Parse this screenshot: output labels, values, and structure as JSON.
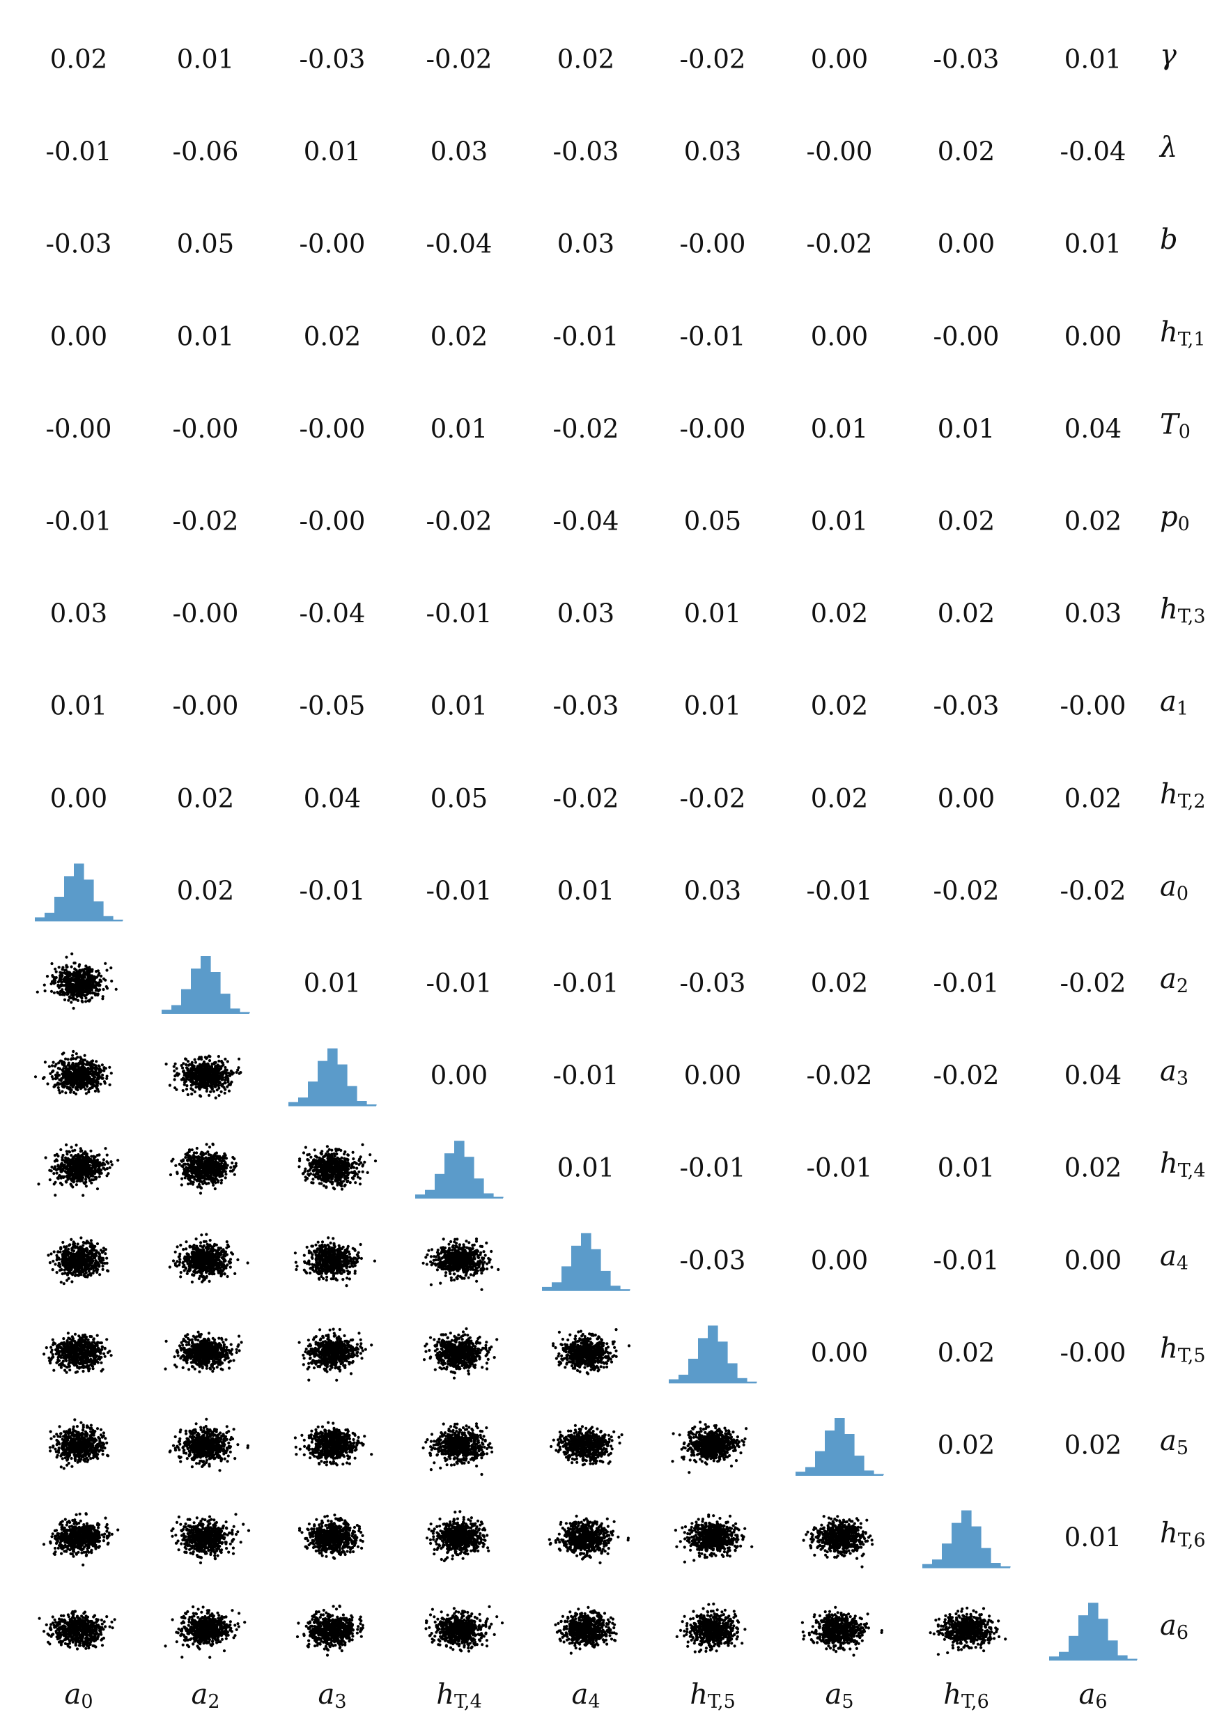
{
  "chart_data": {
    "type": "corner",
    "diagonal": "histogram",
    "lower": "scatter",
    "upper": "correlation-coefficient",
    "row_labels": [
      {
        "base": "γ",
        "sub": ""
      },
      {
        "base": "λ",
        "sub": ""
      },
      {
        "base": "b",
        "sub": ""
      },
      {
        "base": "h",
        "sub": "T,1"
      },
      {
        "base": "T",
        "sub": "0"
      },
      {
        "base": "p",
        "sub": "0"
      },
      {
        "base": "h",
        "sub": "T,3"
      },
      {
        "base": "a",
        "sub": "1"
      },
      {
        "base": "h",
        "sub": "T,2"
      },
      {
        "base": "a",
        "sub": "0"
      },
      {
        "base": "a",
        "sub": "2"
      },
      {
        "base": "a",
        "sub": "3"
      },
      {
        "base": "h",
        "sub": "T,4"
      },
      {
        "base": "a",
        "sub": "4"
      },
      {
        "base": "h",
        "sub": "T,5"
      },
      {
        "base": "a",
        "sub": "5"
      },
      {
        "base": "h",
        "sub": "T,6"
      },
      {
        "base": "a",
        "sub": "6"
      }
    ],
    "col_labels": [
      {
        "base": "a",
        "sub": "0"
      },
      {
        "base": "a",
        "sub": "2"
      },
      {
        "base": "a",
        "sub": "3"
      },
      {
        "base": "h",
        "sub": "T,4"
      },
      {
        "base": "a",
        "sub": "4"
      },
      {
        "base": "h",
        "sub": "T,5"
      },
      {
        "base": "a",
        "sub": "5"
      },
      {
        "base": "h",
        "sub": "T,6"
      },
      {
        "base": "a",
        "sub": "6"
      }
    ],
    "top_rows_correlations": [
      [
        "0.02",
        "0.01",
        "-0.03",
        "-0.02",
        "0.02",
        "-0.02",
        "0.00",
        "-0.03",
        "0.01"
      ],
      [
        "-0.01",
        "-0.06",
        "0.01",
        "0.03",
        "-0.03",
        "0.03",
        "-0.00",
        "0.02",
        "-0.04"
      ],
      [
        "-0.03",
        "0.05",
        "-0.00",
        "-0.04",
        "0.03",
        "-0.00",
        "-0.02",
        "0.00",
        "0.01"
      ],
      [
        "0.00",
        "0.01",
        "0.02",
        "0.02",
        "-0.01",
        "-0.01",
        "0.00",
        "-0.00",
        "0.00"
      ],
      [
        "-0.00",
        "-0.00",
        "-0.00",
        "0.01",
        "-0.02",
        "-0.00",
        "0.01",
        "0.01",
        "0.04"
      ],
      [
        "-0.01",
        "-0.02",
        "-0.00",
        "-0.02",
        "-0.04",
        "0.05",
        "0.01",
        "0.02",
        "0.02"
      ],
      [
        "0.03",
        "-0.00",
        "-0.04",
        "-0.01",
        "0.03",
        "0.01",
        "0.02",
        "0.02",
        "0.03"
      ],
      [
        "0.01",
        "-0.00",
        "-0.05",
        "0.01",
        "-0.03",
        "0.01",
        "0.02",
        "-0.03",
        "-0.00"
      ],
      [
        "0.00",
        "0.02",
        "0.04",
        "0.05",
        "-0.02",
        "-0.02",
        "0.02",
        "0.00",
        "0.02"
      ]
    ],
    "upper_triangle_correlations": [
      [
        "0.02",
        "-0.01",
        "-0.01",
        "0.01",
        "0.03",
        "-0.01",
        "-0.02",
        "-0.02"
      ],
      [
        "0.01",
        "-0.01",
        "-0.01",
        "-0.03",
        "0.02",
        "-0.01",
        "-0.02"
      ],
      [
        "0.00",
        "-0.01",
        "0.00",
        "-0.02",
        "-0.02",
        "0.04"
      ],
      [
        "0.01",
        "-0.01",
        "-0.01",
        "0.01",
        "0.02"
      ],
      [
        "-0.03",
        "0.00",
        "-0.01",
        "0.00"
      ],
      [
        "0.00",
        "0.02",
        "-0.00"
      ],
      [
        "0.02",
        "0.02"
      ],
      [
        "0.01"
      ],
      []
    ],
    "histogram_relative_heights": [
      0.06,
      0.14,
      0.42,
      0.78,
      1.0,
      0.72,
      0.34,
      0.08,
      0.02
    ],
    "scatter_points_per_panel": 600
  }
}
